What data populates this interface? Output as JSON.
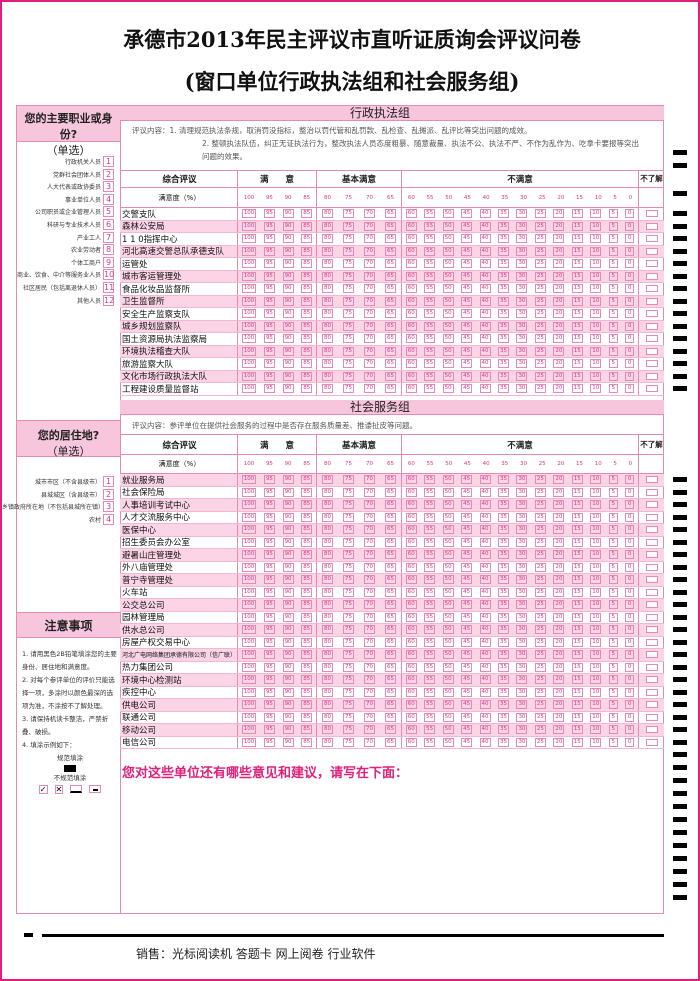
{
  "title": "承德市2013年民主评议市直听证质询会评议问卷",
  "subtitle": "(窗口单位行政执法组和社会服务组)",
  "identity": {
    "question": "您的主要职业或身份?",
    "hint": "（单选）",
    "options": [
      {
        "label": "行政机关人员",
        "num": "1"
      },
      {
        "label": "党群社会团体人员",
        "num": "2"
      },
      {
        "label": "人大代表或政协委员",
        "num": "3"
      },
      {
        "label": "事业单位人员",
        "num": "4"
      },
      {
        "label": "公司职员或企业管理人员",
        "num": "5"
      },
      {
        "label": "科研与专业技术人员",
        "num": "6"
      },
      {
        "label": "产业工人",
        "num": "7"
      },
      {
        "label": "农业劳动者",
        "num": "8"
      },
      {
        "label": "个体工商户",
        "num": "9"
      },
      {
        "label": "商业、饮食、中介等服务业人员",
        "num": "10"
      },
      {
        "label": "社区居民（包括离退休人员）",
        "num": "11"
      },
      {
        "label": "其他人员",
        "num": "12"
      }
    ]
  },
  "residence": {
    "question": "您的居住地?",
    "hint": "（单选）",
    "options": [
      {
        "label": "城市市区（不含县级市）",
        "num": "1"
      },
      {
        "label": "县城城区（含县级市）",
        "num": "2"
      },
      {
        "label": "乡镇政府所在地（不包括县城所在镇）",
        "num": "3"
      },
      {
        "label": "农村",
        "num": "4"
      }
    ]
  },
  "notes": {
    "title": "注意事项",
    "items": [
      "1. 请用黑色2B铅笔填涂您的主要身份、居住地和满意度。",
      "2. 对每个参评单位的评价只能选择一项，多涂时以颜色最深的选项为准，不涂按不了解处理。",
      "3. 请保持机读卡整洁，严禁折叠、破损。",
      "4. 填涂示例如下："
    ],
    "correct": "规范填涂",
    "incorrect": "不规范填涂"
  },
  "columns": {
    "overall": "综合评议",
    "satisfied": "满　　意",
    "basic": "基本满意",
    "dissatisfied": "不满意",
    "unknown": "不了解",
    "degree": "满意度（%）"
  },
  "scale": {
    "satisfied": [
      "100",
      "95",
      "90",
      "85"
    ],
    "basic": [
      "80",
      "75",
      "70",
      "65"
    ],
    "dissatisfied": [
      "60",
      "55",
      "50",
      "45",
      "40",
      "35",
      "30",
      "25",
      "20",
      "15",
      "10",
      "5",
      "0"
    ]
  },
  "sections": [
    {
      "title": "行政执法组",
      "desc": [
        "评议内容：1. 清理规范执法条规，取消罚没指标，整治以罚代管和乱罚款、乱检查、乱摊派、乱评比等突出问题的成效。",
        "2. 整顿执法队伍，纠正无证执法行为，整改执法人员态度粗暴、随意裁量、执法不公、执法不严、不作为乱作为、吃拿卡要报等突出问题的效果。"
      ],
      "units": [
        "交警支队",
        "森林公安局",
        "1 1 0指挥中心",
        "河北高速交警总队承德支队",
        "运管处",
        "城市客运管理处",
        "食品化妆品监督所",
        "卫生监督所",
        "安全生产监察支队",
        "城乡规划监察队",
        "国土资源局执法监察局",
        "环境执法稽查大队",
        "旅游监察大队",
        "文化市场行政执法大队",
        "工程建设质量监督站"
      ]
    },
    {
      "title": "社会服务组",
      "desc": [
        "评议内容：参评单位在提供社会服务的过程中是否存在服务质量差、推诿扯皮等问题。"
      ],
      "units": [
        "就业服务局",
        "社会保险局",
        "人事培训考试中心",
        "人才交流服务中心",
        "医保中心",
        "招生委员会办公室",
        "避暑山庄管理处",
        "外八庙管理处",
        "普宁寺管理处",
        "火车站",
        "公交总公司",
        "园林管理局",
        "供水总公司",
        "房屋产权交易中心",
        "河北广电网络集团承德有限公司（信广联）",
        "热力集团公司",
        "环境中心检测站",
        "疾控中心",
        "供电公司",
        "联通公司",
        "移动公司",
        "电信公司"
      ]
    }
  ],
  "comments_prompt": "您对这些单位还有哪些意见和建议，请写在下面：",
  "footer": "销售：光标阅读机  答题卡  网上阅卷  行业软件",
  "colors": {
    "accent": "#e0207a",
    "pink": "#f7c6dc",
    "bubble": "#d33a8a"
  }
}
